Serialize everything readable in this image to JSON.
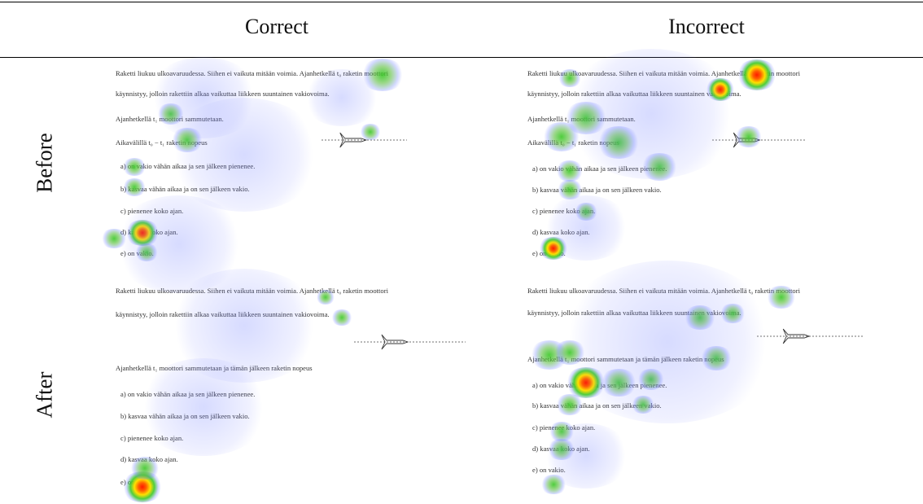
{
  "header": {
    "columns": [
      "Correct",
      "Incorrect"
    ]
  },
  "rows": [
    "Before",
    "After"
  ],
  "panels": [
    {
      "lines": [
        "Raketti liukuu ulkoavaruudessa. Siihen ei vaikuta mitään voimia. Ajanhetkellä t₀ raketin moottori",
        "käynnistyy, jolloin rakettiin alkaa vaikuttaa liikkeen suuntainen vakiovoima.",
        "Ajanhetkellä t₁ moottori sammutetaan.",
        "Aikavälillä t₀ − t₁ raketin nopeus"
      ],
      "options": [
        "a)  on vakio vähän aikaa ja sen jälkeen pienenee.",
        "b)  kasvaa vähän aikaa ja on sen jälkeen vakio.",
        "c)  pienenee koko ajan.",
        "d)  kasvaa koko ajan.",
        "e)  on vakio."
      ]
    },
    {
      "lines": [
        "Raketti liukuu ulkoavaruudessa. Siihen ei vaikuta mitään voimia. Ajanhetkellä t₀ raketin moottori",
        "käynnistyy, jolloin rakettiin alkaa vaikuttaa liikkeen suuntainen vakiovoima.",
        "Ajanhetkellä t₁ moottori sammutetaan.",
        "Aikavälillä t₀ − t₁ raketin nopeus"
      ],
      "options": [
        "a)  on vakio vähän aikaa ja sen jälkeen pienenee.",
        "b)  kasvaa vähän aikaa ja on sen jälkeen vakio.",
        "c)  pienenee koko ajan.",
        "d)  kasvaa koko ajan.",
        "e)  on vakio."
      ]
    },
    {
      "lines": [
        "Raketti liukuu ulkoavaruudessa. Siihen ei vaikuta mitään voimia. Ajanhetkellä t₀ raketin moottori",
        "käynnistyy, jolloin rakettiin alkaa vaikuttaa liikkeen suuntainen vakiovoima.",
        "Ajanhetkellä t₁ moottori sammutetaan ja tämän jälkeen raketin nopeus"
      ],
      "options": [
        "a)  on vakio vähän aikaa ja sen jälkeen pienenee.",
        "b)  kasvaa vähän aikaa ja on sen jälkeen vakio.",
        "c)  pienenee koko ajan.",
        "d)  kasvaa koko ajan.",
        "e)  on vakio."
      ]
    },
    {
      "lines": [
        "Raketti liukuu ulkoavaruudessa. Siihen ei vaikuta mitään voimia. Ajanhetkellä t₀ raketin moottori",
        "käynnistyy, jolloin rakettiin alkaa vaikuttaa liikkeen suuntainen vakiovoima.",
        "Ajanhetkellä t₁ moottori sammutetaan ja tämän jälkeen raketin nopeus"
      ],
      "options": [
        "a)  on vakio vähän aikaa ja sen jälkeen pienenee.",
        "b)  kasvaa vähän aikaa ja on sen jälkeen vakio.",
        "c)  pienenee koko ajan.",
        "d)  kasvaa koko ajan.",
        "e)  on vakio."
      ]
    }
  ]
}
